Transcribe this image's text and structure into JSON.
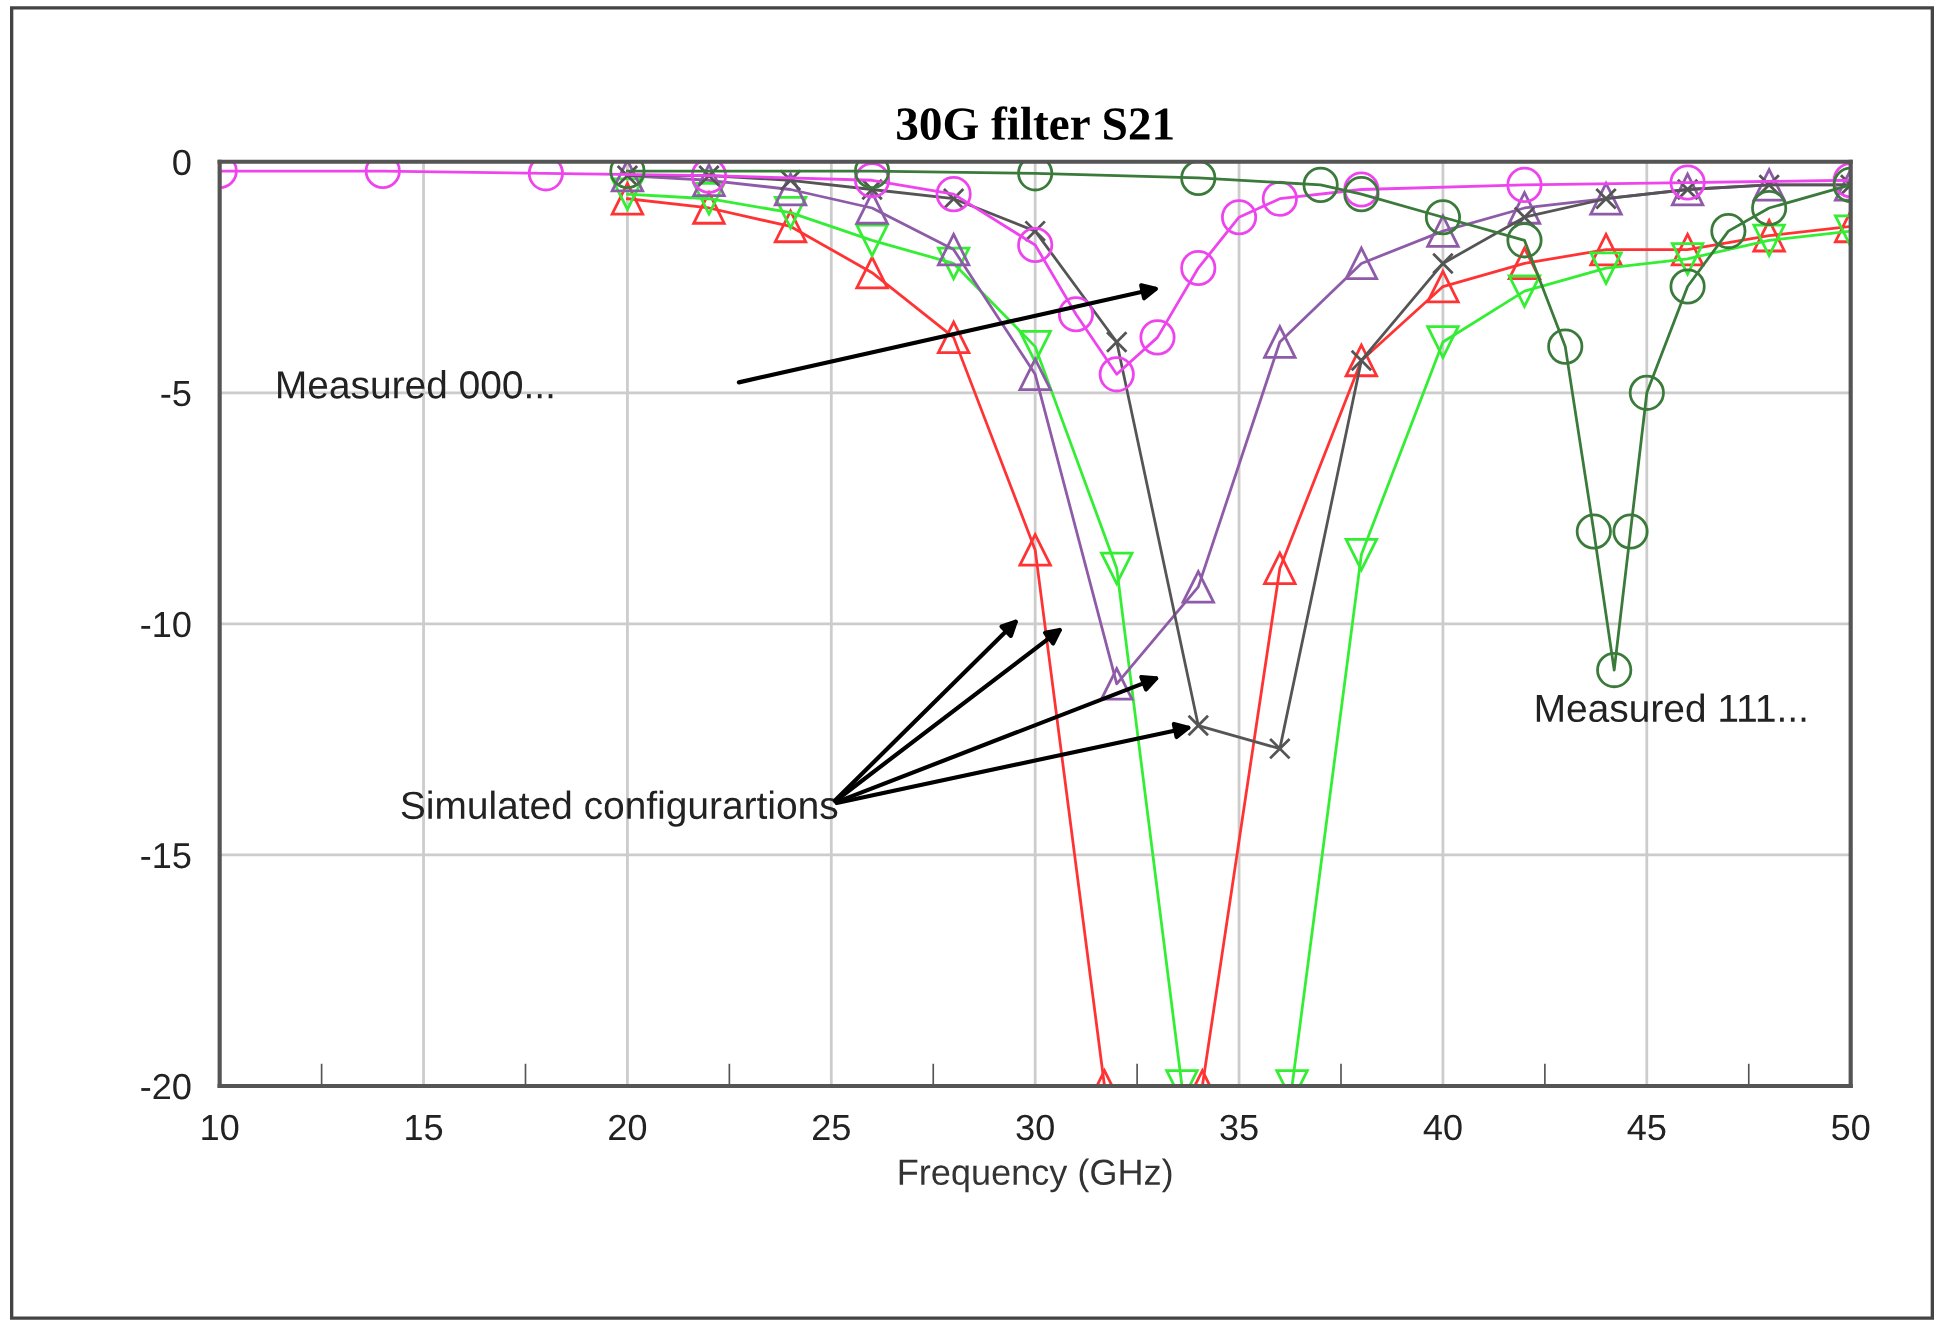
{
  "chart_data": {
    "type": "line",
    "title": "30G filter S21",
    "xlabel": "Frequency (GHz)",
    "xlim": [
      10,
      50
    ],
    "ylim": [
      -20,
      0
    ],
    "xticks": [
      10,
      {
        "value": 12.5,
        "label": null
      },
      15,
      {
        "value": 17.5,
        "label": null
      },
      20,
      {
        "value": 22.5,
        "label": null
      },
      25,
      {
        "value": 27.5,
        "label": null
      },
      30,
      {
        "value": 32.5,
        "label": null
      },
      35,
      {
        "value": 37.5,
        "label": null
      },
      40,
      {
        "value": 42.5,
        "label": null
      },
      45,
      {
        "value": 47.5,
        "label": null
      },
      50
    ],
    "yticks": [
      -20,
      -15,
      -10,
      -5,
      0
    ],
    "grid": true,
    "legend": false,
    "line_style": "solid",
    "series": [
      {
        "color": "#ff3333",
        "marker": "triangle",
        "x": [
          20,
          22,
          24,
          26,
          28,
          30,
          31.7,
          34.1,
          36,
          38,
          40,
          42,
          44,
          46,
          48,
          50
        ],
        "values": [
          -0.8,
          -1.0,
          -1.4,
          -2.4,
          -3.8,
          -8.4,
          -20,
          -20,
          -8.8,
          -4.3,
          -2.7,
          -2.2,
          -1.9,
          -1.9,
          -1.6,
          -1.4
        ]
      },
      {
        "color": "#33ee33",
        "marker": "triangle_down",
        "x": [
          20,
          22,
          24,
          26,
          28,
          30,
          32,
          33.6,
          36.3,
          38,
          40,
          42,
          44,
          46,
          48,
          50
        ],
        "values": [
          -0.7,
          -0.8,
          -1.1,
          -1.7,
          -2.2,
          -4.0,
          -8.8,
          -20,
          -20,
          -8.5,
          -3.9,
          -2.8,
          -2.3,
          -2.1,
          -1.7,
          -1.5
        ]
      },
      {
        "color": "#8e5ba8",
        "marker": "triangle",
        "x": [
          20,
          22,
          24,
          26,
          28,
          30,
          32,
          34,
          36,
          38,
          40,
          42,
          44,
          46,
          48,
          50
        ],
        "values": [
          -0.3,
          -0.4,
          -0.6,
          -1.0,
          -1.9,
          -4.6,
          -11.3,
          -9.2,
          -3.9,
          -2.2,
          -1.5,
          -1.0,
          -0.8,
          -0.6,
          -0.5,
          -0.5
        ]
      },
      {
        "color": "#555555",
        "marker": "cross",
        "x": [
          20,
          22,
          24,
          26,
          28,
          30,
          32,
          34,
          36,
          38,
          40,
          42,
          44,
          46,
          48,
          50
        ],
        "values": [
          -0.3,
          -0.3,
          -0.4,
          -0.6,
          -0.8,
          -1.5,
          -3.9,
          -12.2,
          -12.7,
          -4.3,
          -2.2,
          -1.2,
          -0.8,
          -0.6,
          -0.5,
          -0.5
        ]
      },
      {
        "color": "#ee44ee",
        "marker": "circle",
        "x": [
          10,
          14,
          18,
          22,
          26,
          28,
          30,
          31,
          32,
          33,
          34,
          35,
          36,
          38,
          42,
          46,
          50
        ],
        "values": [
          -0.2,
          -0.2,
          -0.25,
          -0.3,
          -0.4,
          -0.7,
          -1.8,
          -3.3,
          -4.6,
          -3.8,
          -2.3,
          -1.2,
          -0.8,
          -0.6,
          -0.5,
          -0.45,
          -0.4
        ]
      },
      {
        "color": "#3a7a3a",
        "marker": "circle",
        "x": [
          20,
          26,
          30,
          34,
          37,
          38,
          40,
          42,
          43,
          43.7,
          44.2,
          44.6,
          45,
          46,
          47,
          48,
          50
        ],
        "values": [
          -0.2,
          -0.2,
          -0.25,
          -0.35,
          -0.5,
          -0.7,
          -1.2,
          -1.7,
          -4.0,
          -8.0,
          -11.0,
          -8.0,
          -5.0,
          -2.7,
          -1.5,
          -1.0,
          -0.5
        ]
      }
    ],
    "annotations": [
      "Measured 000...",
      {
        "text": "Simulated configurartions",
        "x": 34,
        "y": -12.2
      },
      "Measured 111..."
    ]
  }
}
